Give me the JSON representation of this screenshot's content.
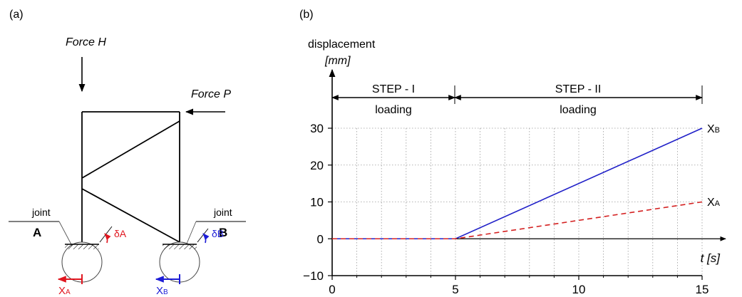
{
  "panel_a": {
    "label": "(a)",
    "force_h": "Force H",
    "force_p": "Force P",
    "joint_a": {
      "word": "joint",
      "letter": "A"
    },
    "joint_b": {
      "word": "joint",
      "letter": "B"
    },
    "delta_a": "δA",
    "delta_b": "δB",
    "x_a": {
      "main": "X",
      "sub": "A"
    },
    "x_b": {
      "main": "X",
      "sub": "B"
    },
    "colors": {
      "joint_a": "#e0161f",
      "joint_b": "#1d1dd6",
      "frame": "#000000"
    }
  },
  "panel_b": {
    "label": "(b)",
    "ylabel_line1": "displacement",
    "ylabel_line2": "[mm]",
    "xlabel": "t [s]",
    "steps": [
      {
        "title": "STEP - I",
        "sub": "loading"
      },
      {
        "title": "STEP - II",
        "sub": "loading"
      }
    ],
    "series_labels": {
      "xb": {
        "main": "X",
        "sub": "B"
      },
      "xa": {
        "main": "X",
        "sub": "A"
      }
    }
  },
  "chart_data": {
    "type": "line",
    "x_ticks": [
      0,
      5,
      10,
      15
    ],
    "y_ticks": [
      -10,
      0,
      10,
      20,
      30
    ],
    "x_tick_labels": [
      "0",
      "5",
      "10",
      "15"
    ],
    "y_tick_labels": [
      "−10",
      "0",
      "10",
      "20",
      "30"
    ],
    "xlim": [
      0,
      15
    ],
    "ylim": [
      -10,
      30
    ],
    "grid": true,
    "series": [
      {
        "name": "XB",
        "x": [
          0,
          5,
          15
        ],
        "y": [
          0,
          0,
          30
        ],
        "color": "#2020c8",
        "style": "solid"
      },
      {
        "name": "XA",
        "x": [
          0,
          5,
          15
        ],
        "y": [
          0,
          0,
          10
        ],
        "color": "#d42020",
        "style": "dashed"
      }
    ]
  }
}
